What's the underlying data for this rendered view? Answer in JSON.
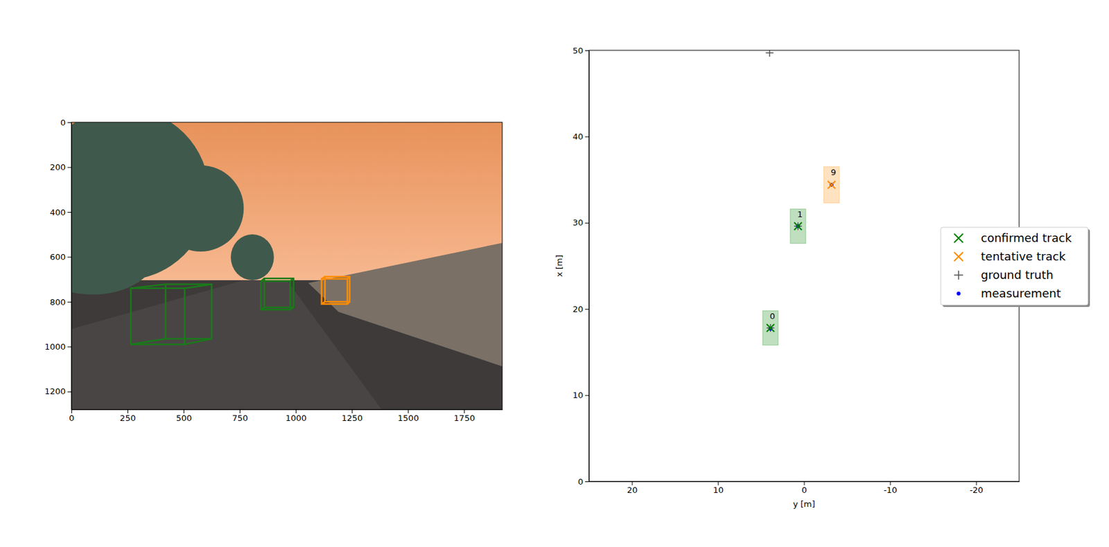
{
  "chart_data": [
    {
      "type": "image",
      "xlim": [
        0,
        1920
      ],
      "ylim": [
        1280,
        0
      ],
      "xticks": [
        0,
        250,
        500,
        750,
        1000,
        1250,
        1500,
        1750
      ],
      "yticks": [
        0,
        200,
        400,
        600,
        800,
        1000,
        1200
      ],
      "boxes": [
        {
          "color": "#1a7a1a",
          "front": [
            265,
            740,
            505,
            990
          ],
          "back": [
            420,
            722,
            625,
            965
          ]
        },
        {
          "color": "#1a7a1a",
          "front": [
            845,
            708,
            975,
            835
          ],
          "back": [
            860,
            696,
            990,
            825
          ]
        },
        {
          "color": "#ff8c00",
          "front": [
            1115,
            698,
            1230,
            810
          ],
          "back": [
            1130,
            688,
            1240,
            800
          ]
        }
      ]
    },
    {
      "type": "scatter",
      "xlabel": "y [m]",
      "ylabel": "x [m]",
      "xlim": [
        25,
        -25
      ],
      "ylim": [
        0,
        50
      ],
      "xticks": [
        20,
        10,
        0,
        -10,
        -20
      ],
      "yticks": [
        0,
        10,
        20,
        30,
        40,
        50
      ],
      "legend": "right",
      "series": [
        {
          "name": "confirmed track",
          "color": "#008000",
          "marker": "x",
          "x": [
            3.9,
            0.7
          ],
          "y": [
            17.8,
            29.6
          ],
          "labels": [
            0,
            1
          ],
          "length": [
            4,
            4
          ],
          "width": [
            1.8,
            1.8
          ]
        },
        {
          "name": "tentative track",
          "color": "#ff8c00",
          "marker": "x",
          "x": [
            -3.2
          ],
          "y": [
            34.4
          ],
          "labels": [
            9
          ],
          "length": [
            4.2
          ],
          "width": [
            1.8
          ]
        },
        {
          "name": "ground truth",
          "color": "#555555",
          "marker": "plus",
          "x": [
            3.9,
            0.7,
            4.0
          ],
          "y": [
            17.8,
            29.6,
            49.7
          ]
        },
        {
          "name": "measurement",
          "color": "#0000ff",
          "marker": "dot",
          "x": [
            3.9,
            0.7,
            -3.2
          ],
          "y": [
            17.7,
            29.6,
            34.4
          ]
        }
      ]
    }
  ]
}
